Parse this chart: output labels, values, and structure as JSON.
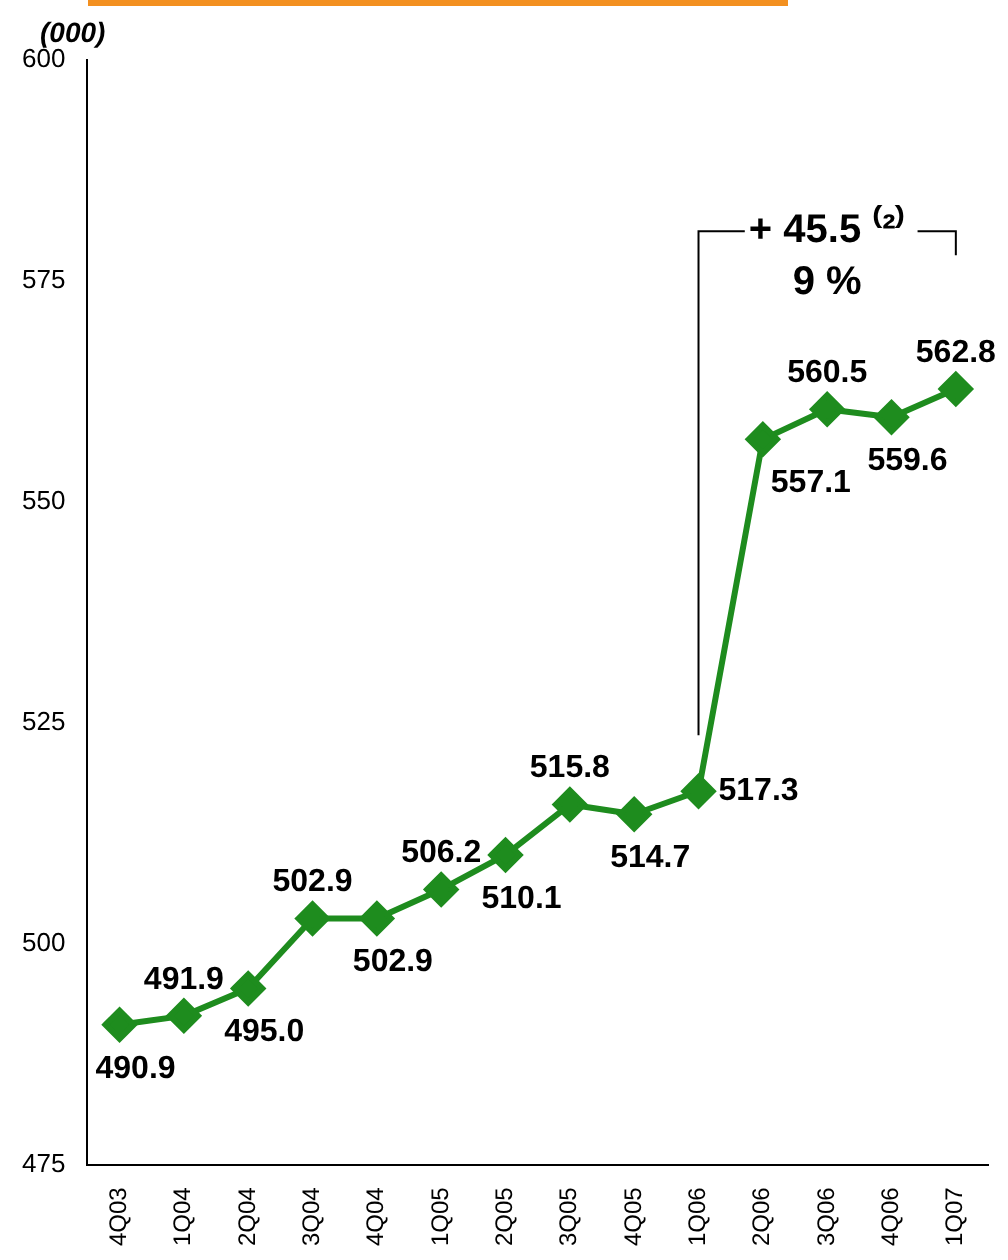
{
  "chart_data": {
    "type": "line",
    "ylabel": "(000)",
    "categories": [
      "4Q03",
      "1Q04",
      "2Q04",
      "3Q04",
      "4Q04",
      "1Q05",
      "2Q05",
      "3Q05",
      "4Q05",
      "1Q06",
      "2Q06",
      "3Q06",
      "4Q06",
      "1Q07"
    ],
    "series": [
      {
        "color": "#1e8c1e",
        "values": [
          490.9,
          491.9,
          495.0,
          502.9,
          502.9,
          506.2,
          510.1,
          515.8,
          514.7,
          517.3,
          557.1,
          560.5,
          559.6,
          562.8
        ],
        "value_labels": [
          "490.9",
          "491.9",
          "495.0",
          "502.9",
          "502.9",
          "506.2",
          "510.1",
          "515.8",
          "514.7",
          "517.3",
          "557.1",
          "560.5",
          "559.6",
          "562.8"
        ]
      }
    ],
    "ylim": [
      475,
      600
    ],
    "yticks": [
      475,
      500,
      525,
      550,
      575,
      600
    ],
    "grid": false,
    "legend": false,
    "marker": "diamond",
    "line_style": "solid",
    "annotations": [
      "+ 45.5 ⁽²⁾",
      "9 %"
    ]
  }
}
